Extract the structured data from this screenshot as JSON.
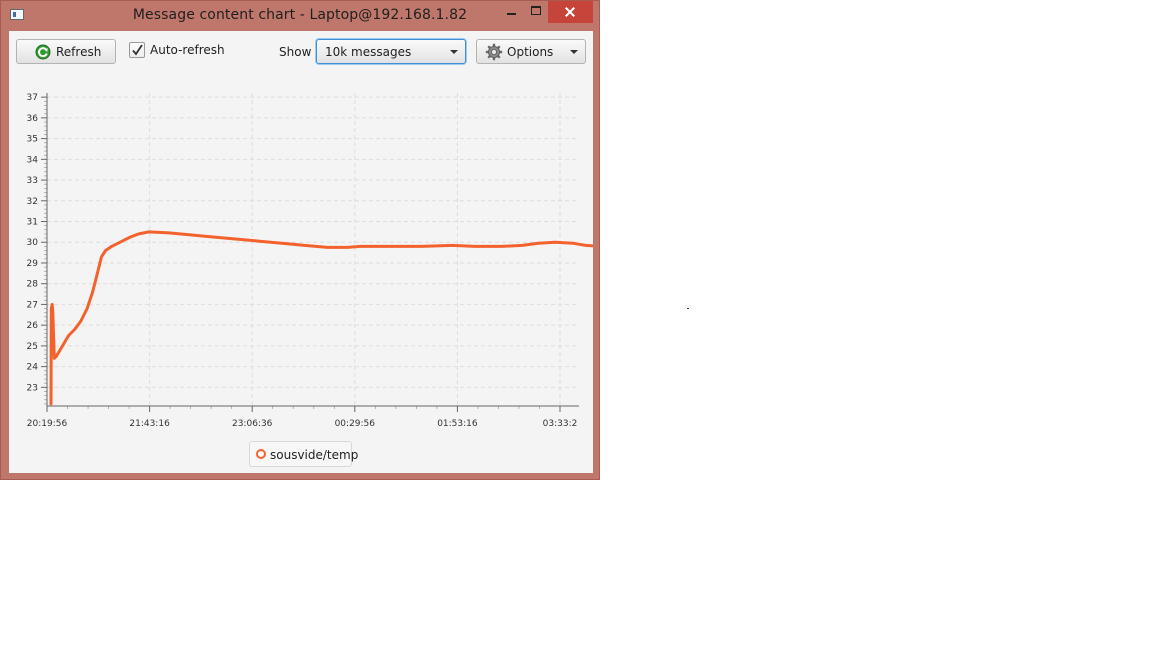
{
  "window": {
    "title": "Message content chart - Laptop@192.168.1.82"
  },
  "toolbar": {
    "refresh_label": "Refresh",
    "auto_refresh_label": "Auto-refresh",
    "auto_refresh_checked": true,
    "show_label": "Show",
    "show_value": "10k messages",
    "options_label": "Options"
  },
  "chart_data": {
    "type": "line",
    "title": "",
    "xlabel": "",
    "ylabel": "",
    "x_tick_labels": [
      "20:19:56",
      "21:43:16",
      "23:06:36",
      "00:29:56",
      "01:53:16",
      "03:33:2"
    ],
    "y_ticks": [
      23,
      24,
      25,
      26,
      27,
      28,
      29,
      30,
      31,
      32,
      33,
      34,
      35,
      36,
      37
    ],
    "ylim": [
      22.1,
      37.2
    ],
    "grid": true,
    "legend_position": "bottom-center",
    "series": [
      {
        "name": "sousvide/temp",
        "color": "#f3622d",
        "points": [
          [
            "20:23:10",
            22.2
          ],
          [
            "20:23:25",
            26.8
          ],
          [
            "20:24:10",
            27.0
          ],
          [
            "20:24:40",
            26.6
          ],
          [
            "20:25:50",
            24.4
          ],
          [
            "20:27:30",
            24.5
          ],
          [
            "20:32:30",
            25.0
          ],
          [
            "20:37:30",
            25.5
          ],
          [
            "20:42:30",
            25.8
          ],
          [
            "20:47:30",
            26.2
          ],
          [
            "20:52:30",
            26.8
          ],
          [
            "20:57:00",
            27.6
          ],
          [
            "21:00:50",
            28.5
          ],
          [
            "21:04:10",
            29.3
          ],
          [
            "21:07:30",
            29.6
          ],
          [
            "21:12:30",
            29.8
          ],
          [
            "21:17:30",
            29.95
          ],
          [
            "21:22:30",
            30.1
          ],
          [
            "21:27:30",
            30.25
          ],
          [
            "21:34:10",
            30.4
          ],
          [
            "21:42:30",
            30.5
          ],
          [
            "21:59:10",
            30.45
          ],
          [
            "22:17:30",
            30.35
          ],
          [
            "22:35:50",
            30.25
          ],
          [
            "22:54:10",
            30.15
          ],
          [
            "23:12:30",
            30.05
          ],
          [
            "23:30:50",
            29.95
          ],
          [
            "23:49:10",
            29.85
          ],
          [
            "24:07:30",
            29.75
          ],
          [
            "24:24:10",
            29.75
          ],
          [
            "24:34:10",
            29.8
          ],
          [
            "24:59:10",
            29.8
          ],
          [
            "25:24:10",
            29.8
          ],
          [
            "25:49:10",
            29.85
          ],
          [
            "26:07:30",
            29.8
          ],
          [
            "26:29:10",
            29.8
          ],
          [
            "26:45:50",
            29.85
          ],
          [
            "26:59:10",
            29.95
          ],
          [
            "27:12:30",
            30.0
          ],
          [
            "27:27:30",
            29.95
          ],
          [
            "27:37:30",
            29.85
          ],
          [
            "27:50:50",
            29.8
          ]
        ]
      }
    ]
  }
}
